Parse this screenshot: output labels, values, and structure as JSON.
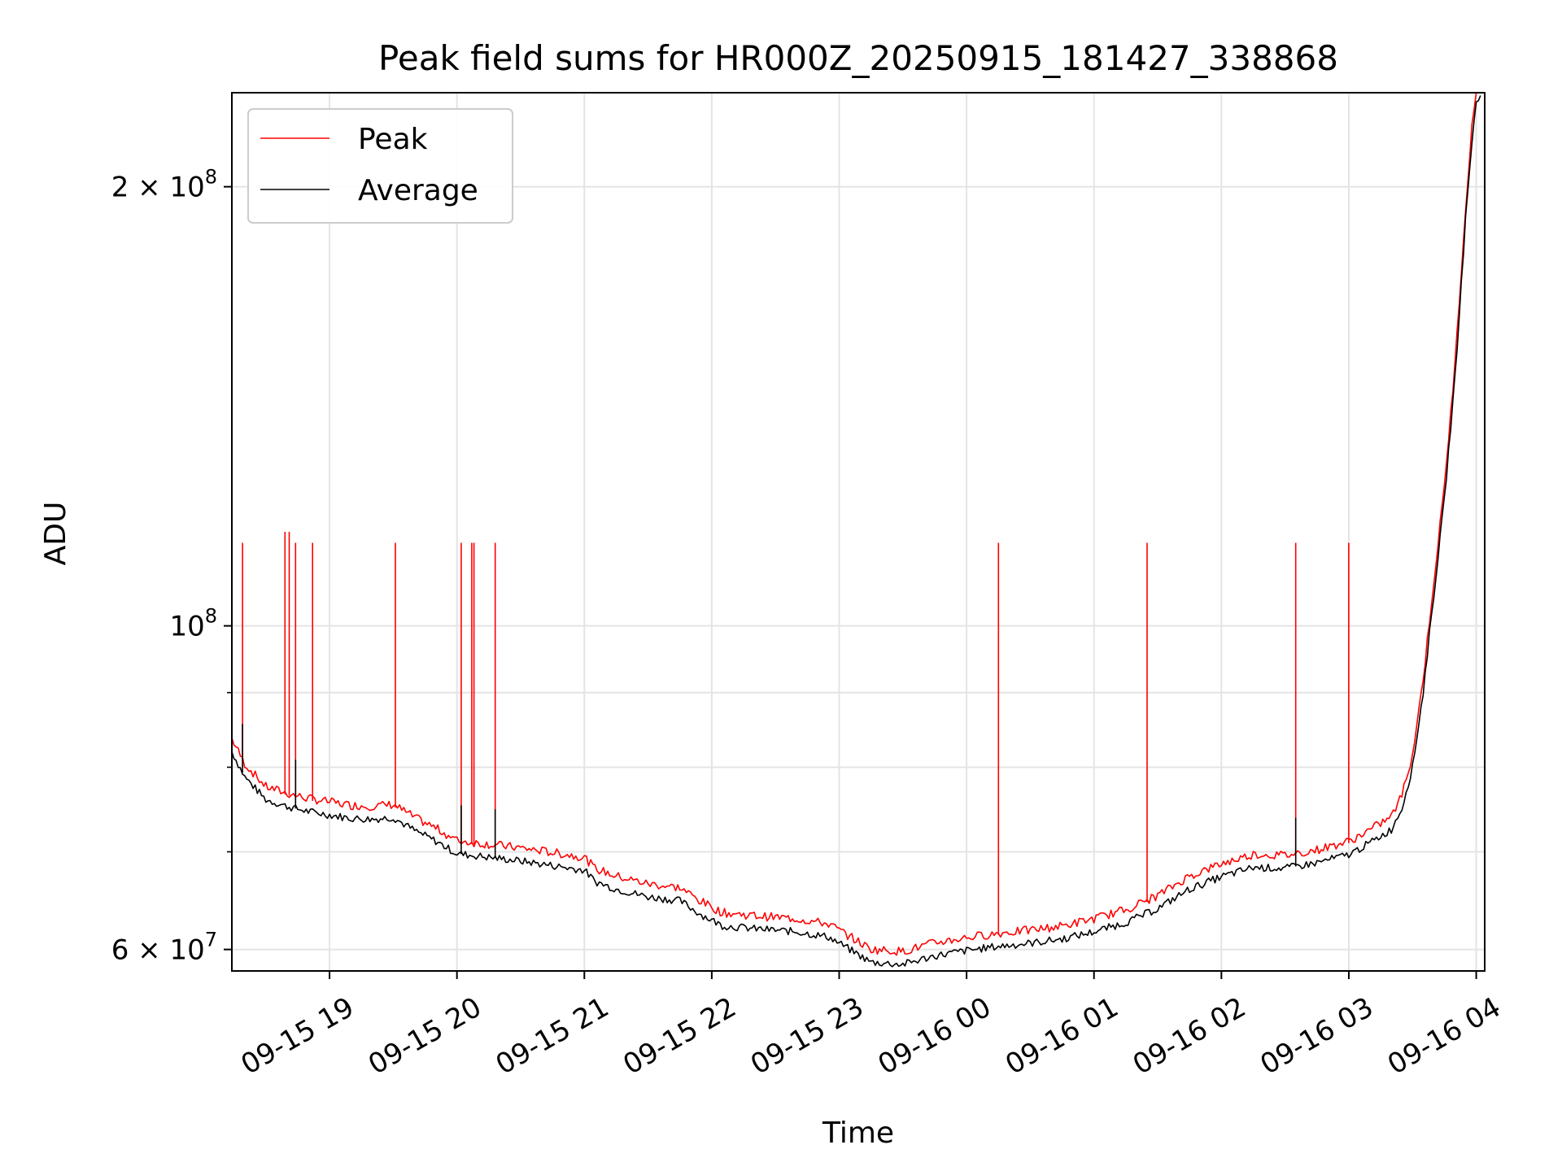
{
  "chart_data": {
    "type": "line",
    "title": "Peak field sums for HR000Z_20250915_181427_338868",
    "xlabel": "Time",
    "ylabel": "ADU",
    "y_scale": "log",
    "ylim": [
      58000000,
      232000000
    ],
    "xlim": [
      "2025-09-15 18:14",
      "2025-09-16 04:04"
    ],
    "grid": true,
    "legend_position": "top-left",
    "x_ticks": [
      "09-15 19",
      "09-15 20",
      "09-15 21",
      "09-15 22",
      "09-15 23",
      "09-16 00",
      "09-16 01",
      "09-16 02",
      "09-16 03",
      "09-16 04"
    ],
    "y_ticks": [
      {
        "value": 60000000,
        "mantissa": "6",
        "exponent": "7"
      },
      {
        "value": 100000000,
        "mantissa": "",
        "exponent": "8"
      },
      {
        "value": 200000000,
        "mantissa": "2",
        "exponent": "8"
      }
    ],
    "base_label": "10",
    "times_label": "×",
    "series": [
      {
        "name": "Average",
        "color": "#000000",
        "points": [
          [
            "2025-09-15 18:14",
            82000000
          ],
          [
            "2025-09-15 18:20",
            78800000
          ],
          [
            "2025-09-15 18:30",
            76000000
          ],
          [
            "2025-09-15 18:40",
            75200000
          ],
          [
            "2025-09-15 18:50",
            74600000
          ],
          [
            "2025-09-15 19:00",
            74200000
          ],
          [
            "2025-09-15 19:10",
            73800000
          ],
          [
            "2025-09-15 19:20",
            73700000
          ],
          [
            "2025-09-15 19:30",
            73900000
          ],
          [
            "2025-09-15 19:40",
            72400000
          ],
          [
            "2025-09-15 19:50",
            71200000
          ],
          [
            "2025-09-15 20:00",
            69800000
          ],
          [
            "2025-09-15 20:15",
            69400000
          ],
          [
            "2025-09-15 20:30",
            69000000
          ],
          [
            "2025-09-15 20:45",
            68500000
          ],
          [
            "2025-09-15 21:00",
            68000000
          ],
          [
            "2025-09-15 21:05",
            66800000
          ],
          [
            "2025-09-15 21:15",
            66000000
          ],
          [
            "2025-09-15 21:30",
            65200000
          ],
          [
            "2025-09-15 21:45",
            64800000
          ],
          [
            "2025-09-15 21:55",
            63400000
          ],
          [
            "2025-09-15 22:05",
            62300000
          ],
          [
            "2025-09-15 22:20",
            62000000
          ],
          [
            "2025-09-15 22:40",
            61700000
          ],
          [
            "2025-09-15 22:55",
            61200000
          ],
          [
            "2025-09-15 23:05",
            60000000
          ],
          [
            "2025-09-15 23:15",
            58800000
          ],
          [
            "2025-09-15 23:30",
            58600000
          ],
          [
            "2025-09-15 23:45",
            59400000
          ],
          [
            "2025-09-16 00:00",
            59900000
          ],
          [
            "2025-09-16 00:15",
            60300000
          ],
          [
            "2025-09-16 00:30",
            60600000
          ],
          [
            "2025-09-16 00:45",
            61000000
          ],
          [
            "2025-09-16 01:00",
            61700000
          ],
          [
            "2025-09-16 01:15",
            62600000
          ],
          [
            "2025-09-16 01:30",
            64000000
          ],
          [
            "2025-09-16 01:45",
            66000000
          ],
          [
            "2025-09-16 02:00",
            67300000
          ],
          [
            "2025-09-16 02:15",
            68300000
          ],
          [
            "2025-09-16 02:30",
            68200000
          ],
          [
            "2025-09-16 02:45",
            68800000
          ],
          [
            "2025-09-16 03:00",
            69700000
          ],
          [
            "2025-09-16 03:10",
            71000000
          ],
          [
            "2025-09-16 03:20",
            72500000
          ],
          [
            "2025-09-16 03:25",
            75000000
          ],
          [
            "2025-09-16 03:30",
            80000000
          ],
          [
            "2025-09-16 03:35",
            90000000
          ],
          [
            "2025-09-16 03:40",
            105000000
          ],
          [
            "2025-09-16 03:45",
            122000000
          ],
          [
            "2025-09-16 03:50",
            148000000
          ],
          [
            "2025-09-16 03:55",
            190000000
          ],
          [
            "2025-09-16 03:58",
            215000000
          ],
          [
            "2025-09-16 04:00",
            228000000
          ],
          [
            "2025-09-16 04:02",
            231000000
          ]
        ]
      },
      {
        "name": "Peak",
        "color": "#ff0000",
        "offset_ratio": 1.018,
        "spike_peak": 114000000,
        "spikes": [
          [
            "2025-09-15 18:19",
            114000000
          ],
          [
            "2025-09-15 18:39",
            116000000
          ],
          [
            "2025-09-15 18:41",
            116000000
          ],
          [
            "2025-09-15 18:44",
            114000000
          ],
          [
            "2025-09-15 18:52",
            114000000
          ],
          [
            "2025-09-15 19:31",
            114000000
          ],
          [
            "2025-09-15 20:02",
            114000000
          ],
          [
            "2025-09-15 20:07",
            114000000
          ],
          [
            "2025-09-15 20:08",
            114000000
          ],
          [
            "2025-09-15 20:18",
            114000000
          ],
          [
            "2025-09-16 00:15",
            114000000
          ],
          [
            "2025-09-16 01:25",
            114000000
          ],
          [
            "2025-09-16 02:35",
            114000000
          ],
          [
            "2025-09-16 03:00",
            114000000
          ]
        ]
      }
    ]
  }
}
